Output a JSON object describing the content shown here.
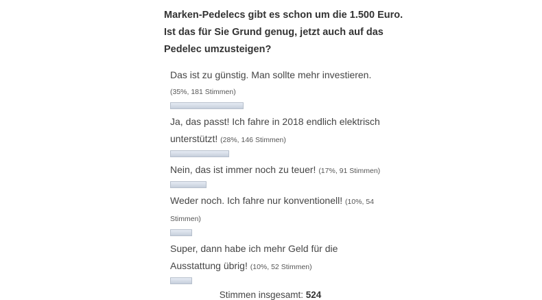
{
  "poll": {
    "question_lines": [
      "Marken-Pedelecs gibt es schon um die 1.500 Euro.",
      "Ist das für Sie Grund genug, jetzt auch auf das",
      "Pedelec umzusteigen?"
    ],
    "answers": [
      {
        "text_lines": [
          "Das ist zu günstig. Man sollte mehr investieren."
        ],
        "stats": "(35%, 181 Stimmen)",
        "percent": 35,
        "votes": 181
      },
      {
        "text_lines": [
          "Ja, das passt! Ich fahre in 2018 endlich elektrisch",
          "unterstützt!"
        ],
        "stats": "(28%, 146 Stimmen)",
        "percent": 28,
        "votes": 146
      },
      {
        "text_lines": [
          "Nein, das ist immer noch zu teuer!"
        ],
        "stats": "(17%, 91 Stimmen)",
        "percent": 17,
        "votes": 91
      },
      {
        "text_lines": [
          "Weder noch. Ich fahre nur konventionell!"
        ],
        "stats": "(10%, 54",
        "stats_continued": "Stimmen)",
        "percent": 10,
        "votes": 54
      },
      {
        "text_lines": [
          "Super, dann habe ich mehr Geld für die",
          "Ausstattung übrig!"
        ],
        "stats": "(10%, 52 Stimmen)",
        "percent": 10,
        "votes": 52
      }
    ],
    "total_label": "Stimmen insgesamt:",
    "total_value": "524",
    "colors": {
      "bar_fill_top": "#e6ebf3",
      "bar_fill_bottom": "#c6cfdc",
      "bar_border": "#b6bfcc",
      "text": "#444444"
    }
  }
}
